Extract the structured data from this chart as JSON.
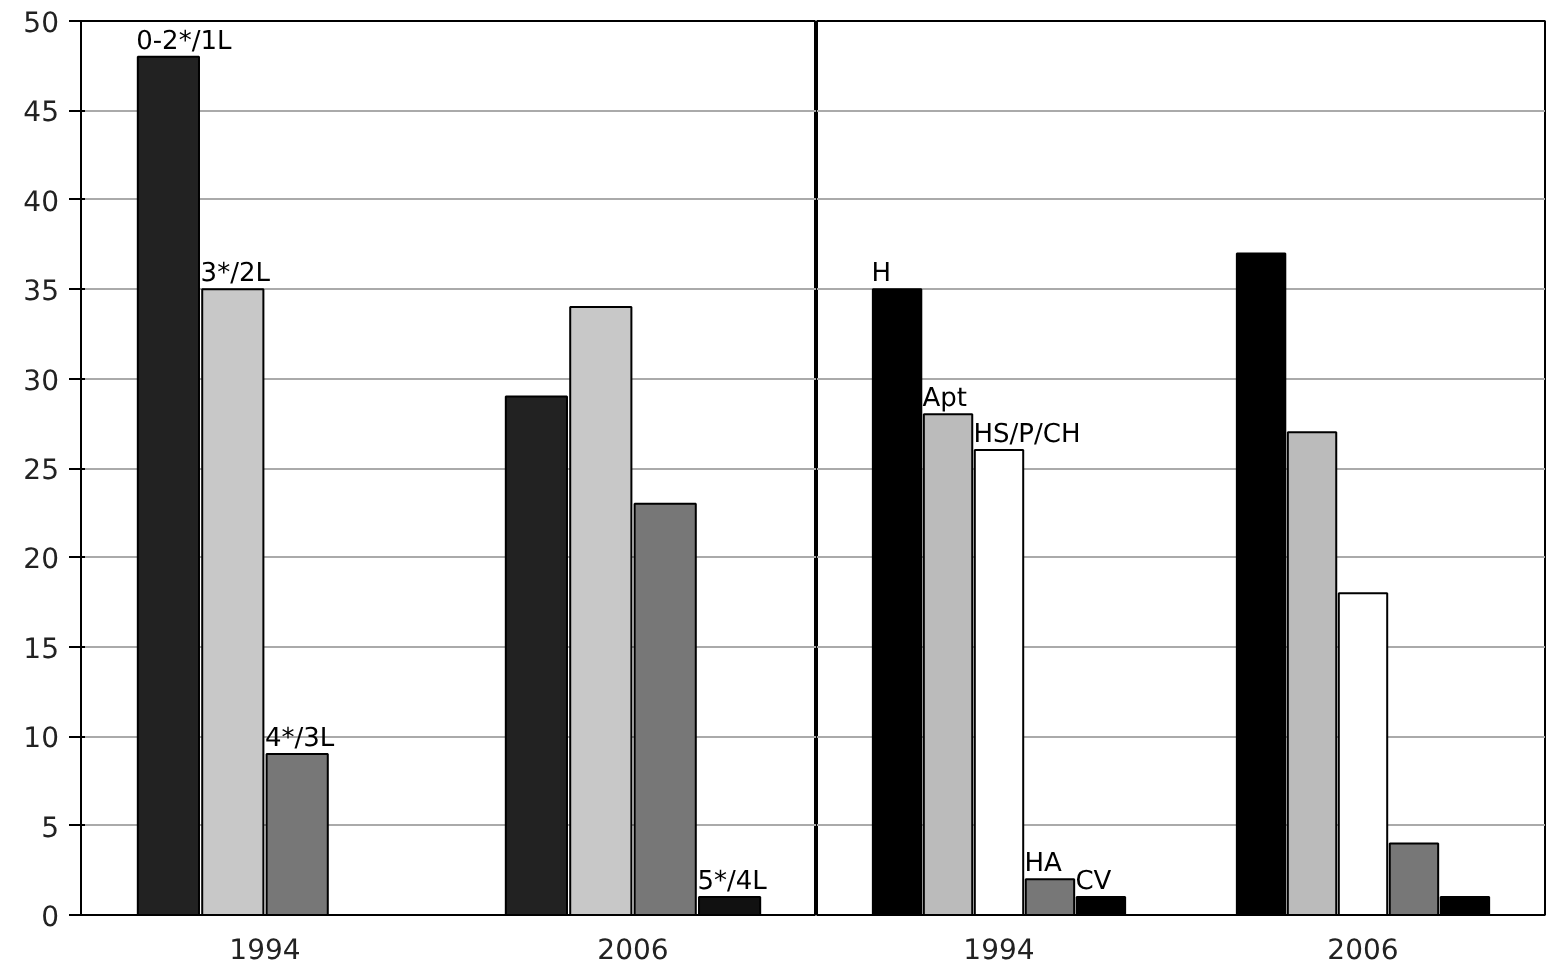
{
  "chart_data": [
    {
      "type": "bar",
      "categories": [
        "1994",
        "2006"
      ],
      "ylim": [
        0,
        50
      ],
      "yticks": [
        0,
        5,
        10,
        15,
        20,
        25,
        30,
        35,
        40,
        45,
        50
      ],
      "grid": "y",
      "series": [
        {
          "name": "0-2*/1L",
          "color": "#222222",
          "values": [
            48,
            29
          ]
        },
        {
          "name": "3*/2L",
          "color": "#c8c8c8",
          "values": [
            35,
            34
          ]
        },
        {
          "name": "4*/3L",
          "color": "#777777",
          "values": [
            9,
            23
          ]
        },
        {
          "name": "5*/4L",
          "color": "#111111",
          "values": [
            null,
            1
          ]
        }
      ]
    },
    {
      "type": "bar",
      "categories": [
        "1994",
        "2006"
      ],
      "ylim": [
        0,
        50
      ],
      "yticks": [
        0,
        5,
        10,
        15,
        20,
        25,
        30,
        35,
        40,
        45,
        50
      ],
      "grid": "y",
      "tick_labels": "x",
      "series": [
        {
          "name": "H",
          "color": "#000000",
          "values": [
            35,
            37
          ]
        },
        {
          "name": "Apt",
          "color": "#bbbbbb",
          "values": [
            28,
            27
          ]
        },
        {
          "name": "HS/P/CH",
          "color": "#ffffff",
          "values": [
            26,
            18
          ]
        },
        {
          "name": "HA",
          "color": "#777777",
          "values": [
            2,
            4
          ]
        },
        {
          "name": "CV",
          "color": "#000000",
          "values": [
            1,
            1
          ]
        }
      ]
    }
  ]
}
